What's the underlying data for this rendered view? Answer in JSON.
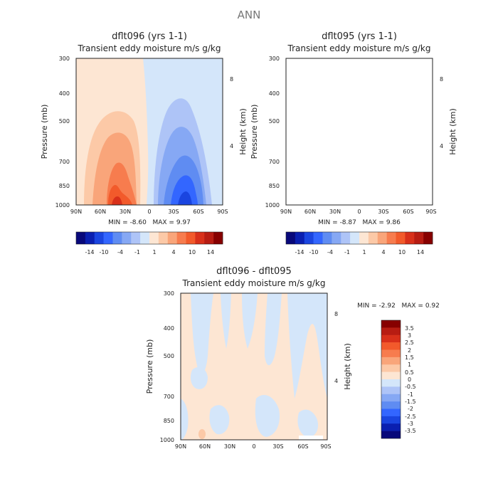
{
  "page": {
    "title": "ANN"
  },
  "colors": {
    "neg": [
      "#08087a",
      "#0a1fb0",
      "#1a45e0",
      "#3366ff",
      "#5f8cf2",
      "#86a8f4",
      "#aec4f7",
      "#d4e6fa"
    ],
    "pos": [
      "#fde6d3",
      "#fcc9a7",
      "#f9a57a",
      "#f77c4e",
      "#f25a2b",
      "#d8301a",
      "#b71c12",
      "#870000"
    ]
  },
  "chart_data": [
    {
      "type": "heatmap",
      "id": "p1",
      "title": "dflt096 (yrs 1-1)",
      "subtitle": "Transient eddy moisture m/s g/kg",
      "ylabel": "Pressure (mb)",
      "ylabel_right": "Height (km)",
      "x_ticks": [
        "90N",
        "60N",
        "30N",
        "0",
        "30S",
        "60S",
        "90S"
      ],
      "y_ticks": [
        "300",
        "400",
        "500",
        "700",
        "850",
        "1000"
      ],
      "y_ticks_right": [
        "8",
        "4"
      ],
      "stats": {
        "min_label": "MIN =",
        "min": "-8.60",
        "max_label": "MAX =",
        "max": "9.97"
      },
      "colorbar_labels": [
        "-14",
        "-10",
        "-4",
        "-1",
        "1",
        "4",
        "10",
        "14"
      ]
    },
    {
      "type": "heatmap",
      "id": "p2",
      "title": "dflt095 (yrs 1-1)",
      "subtitle": "Transient eddy moisture m/s g/kg",
      "ylabel": "Pressure (mb)",
      "ylabel_right": "Height (km)",
      "x_ticks": [
        "90N",
        "60N",
        "30N",
        "0",
        "30S",
        "60S",
        "90S"
      ],
      "y_ticks": [
        "300",
        "400",
        "500",
        "700",
        "850",
        "1000"
      ],
      "y_ticks_right": [
        "8",
        "4"
      ],
      "stats": {
        "min_label": "MIN =",
        "min": "-8.87",
        "max_label": "MAX =",
        "max": "9.86"
      },
      "colorbar_labels": [
        "-14",
        "-10",
        "-4",
        "-1",
        "1",
        "4",
        "10",
        "14"
      ]
    },
    {
      "type": "heatmap",
      "id": "p3",
      "title": "dflt096 - dflt095",
      "subtitle": "Transient eddy moisture m/s g/kg",
      "ylabel": "Pressure (mb)",
      "ylabel_right": "Height (km)",
      "x_ticks": [
        "90N",
        "60N",
        "30N",
        "0",
        "30S",
        "60S",
        "90S"
      ],
      "y_ticks": [
        "300",
        "400",
        "500",
        "700",
        "850",
        "1000"
      ],
      "y_ticks_right": [
        "8",
        "4"
      ],
      "stats": {
        "min_label": "MIN =",
        "min": "-2.92",
        "max_label": "MAX =",
        "max": "0.92"
      },
      "colorbar_labels": [
        "3.5",
        "3",
        "2.5",
        "2",
        "1.5",
        "1",
        "0.5",
        "0",
        "-0.5",
        "-1",
        "-1.5",
        "-2",
        "-2.5",
        "-3",
        "-3.5"
      ]
    }
  ]
}
